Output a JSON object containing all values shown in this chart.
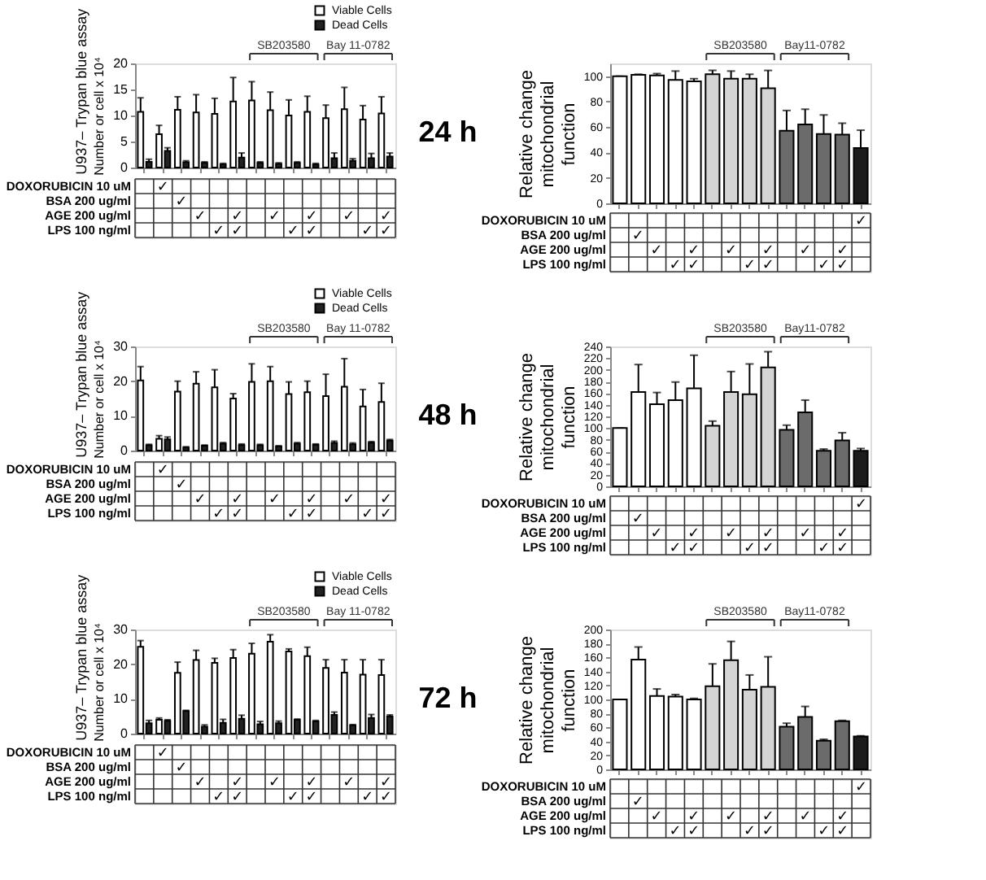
{
  "chart_data": [
    {
      "type": "bar",
      "title": "U937– Trypan blue assay",
      "ylabel": "Number or cell x 10⁴",
      "categories": [
        null,
        null,
        null,
        null,
        null,
        null,
        null,
        null,
        null,
        null,
        null,
        null,
        null,
        null
      ],
      "series": [
        {
          "name": "Viable Cells",
          "color": "#ffffff",
          "values": [
            10.7,
            6.4,
            11.1,
            10.6,
            10.3,
            12.7,
            12.9,
            11.0,
            10.0,
            10.7,
            9.5,
            11.2,
            9.2,
            10.4
          ],
          "errors": [
            2.7,
            1.7,
            2.5,
            3.4,
            3.0,
            4.6,
            3.6,
            3.5,
            3.0,
            3.0,
            2.5,
            4.2,
            2.7,
            3.2
          ]
        },
        {
          "name": "Dead Cells",
          "color": "#222222",
          "values": [
            1.1,
            3.2,
            1.0,
            0.9,
            0.6,
            1.9,
            0.9,
            0.7,
            0.9,
            0.6,
            1.8,
            1.3,
            1.8,
            2.1
          ],
          "errors": [
            0.5,
            0.6,
            0.3,
            0.2,
            0.2,
            0.9,
            0.2,
            0.2,
            0.2,
            0.2,
            1.0,
            0.4,
            0.9,
            0.7
          ]
        }
      ],
      "ylim": [
        0,
        20
      ],
      "yticks": [
        0,
        5,
        10,
        15,
        20
      ],
      "legend": "top right",
      "tick_labels": "y",
      "annotations": [
        "SB203580",
        "Bay 11-0782"
      ]
    },
    {
      "type": "other",
      "categories": [
        null,
        null,
        null,
        null,
        null,
        null,
        null,
        null,
        null,
        null,
        null,
        null,
        null,
        null
      ],
      "y_categories": [
        "DOXORUBICIN 10 uM",
        "BSA 200 ug/ml",
        "AGE 200 ug/ml",
        "LPS 100 ng/ml"
      ],
      "cell_labels": [
        [
          null,
          "✓",
          null,
          null,
          null,
          null,
          null,
          null,
          null,
          null,
          null,
          null,
          null,
          null
        ],
        [
          null,
          null,
          "✓",
          null,
          null,
          null,
          null,
          null,
          null,
          null,
          null,
          null,
          null,
          null
        ],
        [
          null,
          null,
          null,
          "✓",
          null,
          "✓",
          null,
          "✓",
          null,
          "✓",
          null,
          "✓",
          null,
          "✓"
        ],
        [
          null,
          null,
          null,
          null,
          "✓",
          "✓",
          null,
          null,
          "✓",
          "✓",
          null,
          null,
          "✓",
          "✓"
        ]
      ]
    },
    {
      "type": "bar",
      "title": "24 h",
      "ylabel": "Relative change mitochondrial function",
      "categories": [
        null,
        null,
        null,
        null,
        null,
        null,
        null,
        null,
        null,
        null,
        null,
        null,
        null,
        null
      ],
      "values": [
        100,
        101,
        100.5,
        97,
        96,
        101.5,
        98,
        98,
        90.5,
        57,
        62,
        54.5,
        54,
        43.5
      ],
      "errors": [
        0,
        0.5,
        1.5,
        7,
        2,
        3,
        6,
        3.5,
        14,
        16,
        12,
        15,
        9,
        14
      ],
      "colors": [
        "#ffffff",
        "#ffffff",
        "#ffffff",
        "#ffffff",
        "#ffffff",
        "#d4d4d4",
        "#d4d4d4",
        "#d4d4d4",
        "#d4d4d4",
        "#6b6b6b",
        "#6b6b6b",
        "#6b6b6b",
        "#6b6b6b",
        "#1c1c1c"
      ],
      "ylim": [
        0,
        110
      ],
      "yticks": [
        0,
        20,
        40,
        60,
        80,
        100
      ],
      "tick_labels": "y",
      "annotations": [
        "SB203580",
        "Bay11-0782"
      ]
    },
    {
      "type": "other",
      "categories": [
        null,
        null,
        null,
        null,
        null,
        null,
        null,
        null,
        null,
        null,
        null,
        null,
        null,
        null
      ],
      "y_categories": [
        "DOXORUBICIN 10 uM",
        "BSA 200 ug/ml",
        "AGE 200 ug/ml",
        "LPS 100 ng/ml"
      ],
      "cell_labels": [
        [
          null,
          null,
          null,
          null,
          null,
          null,
          null,
          null,
          null,
          null,
          null,
          null,
          null,
          "✓"
        ],
        [
          null,
          "✓",
          null,
          null,
          null,
          null,
          null,
          null,
          null,
          null,
          null,
          null,
          null,
          null
        ],
        [
          null,
          null,
          "✓",
          null,
          "✓",
          null,
          "✓",
          null,
          "✓",
          null,
          "✓",
          null,
          "✓",
          null
        ],
        [
          null,
          null,
          null,
          "✓",
          "✓",
          null,
          null,
          "✓",
          "✓",
          null,
          null,
          "✓",
          "✓",
          null
        ]
      ]
    },
    {
      "type": "bar",
      "title": "U937– Trypan blue assay",
      "ylabel": "Number or cell x 10⁴",
      "categories": [
        null,
        null,
        null,
        null,
        null,
        null,
        null,
        null,
        null,
        null,
        null,
        null,
        null,
        null
      ],
      "series": [
        {
          "name": "Viable Cells",
          "color": "#ffffff",
          "values": [
            20.2,
            3.4,
            17.0,
            19.3,
            18.2,
            15.0,
            19.8,
            20.0,
            16.3,
            16.8,
            15.7,
            18.4,
            12.7,
            14.0
          ],
          "errors": [
            4.0,
            0.9,
            3.0,
            3.4,
            5.1,
            1.4,
            5.2,
            4.2,
            3.5,
            3.2,
            6.3,
            8.1,
            4.9,
            5.4
          ]
        },
        {
          "name": "Dead Cells",
          "color": "#222222",
          "values": [
            1.5,
            3.2,
            0.9,
            1.4,
            2.0,
            1.6,
            1.5,
            1.2,
            2.0,
            1.7,
            2.2,
            1.8,
            2.3,
            2.9
          ],
          "errors": [
            0.3,
            0.7,
            0.2,
            0.2,
            0.3,
            0.3,
            0.3,
            0.2,
            0.3,
            0.2,
            0.5,
            0.4,
            0.3,
            0.3
          ]
        }
      ],
      "ylim": [
        0,
        30
      ],
      "yticks": [
        0,
        10,
        20,
        30
      ],
      "legend": "top right",
      "tick_labels": "y",
      "annotations": [
        "SB203580",
        "Bay 11-0782"
      ]
    },
    {
      "type": "other",
      "categories": [
        null,
        null,
        null,
        null,
        null,
        null,
        null,
        null,
        null,
        null,
        null,
        null,
        null,
        null
      ],
      "y_categories": [
        "DOXORUBICIN 10 uM",
        "BSA 200 ug/ml",
        "AGE 200 ug/ml",
        "LPS 100 ng/ml"
      ],
      "cell_labels": [
        [
          null,
          "✓",
          null,
          null,
          null,
          null,
          null,
          null,
          null,
          null,
          null,
          null,
          null,
          null
        ],
        [
          null,
          null,
          "✓",
          null,
          null,
          null,
          null,
          null,
          null,
          null,
          null,
          null,
          null,
          null
        ],
        [
          null,
          null,
          null,
          "✓",
          null,
          "✓",
          null,
          "✓",
          null,
          "✓",
          null,
          "✓",
          null,
          "✓"
        ],
        [
          null,
          null,
          null,
          null,
          "✓",
          "✓",
          null,
          null,
          "✓",
          "✓",
          null,
          null,
          "✓",
          "✓"
        ]
      ]
    },
    {
      "type": "bar",
      "title": "48 h",
      "ylabel": "Relative change mitochondrial function",
      "categories": [
        null,
        null,
        null,
        null,
        null,
        null,
        null,
        null,
        null,
        null,
        null,
        null,
        null,
        null
      ],
      "values": [
        100,
        162,
        141,
        148,
        168,
        104,
        162,
        158,
        204,
        97,
        127,
        61,
        79,
        61
      ],
      "errors": [
        0,
        47,
        20,
        31,
        57,
        8,
        35,
        52,
        27,
        8,
        21,
        3,
        13,
        4
      ],
      "colors": [
        "#ffffff",
        "#ffffff",
        "#ffffff",
        "#ffffff",
        "#ffffff",
        "#d4d4d4",
        "#d4d4d4",
        "#d4d4d4",
        "#d4d4d4",
        "#6b6b6b",
        "#6b6b6b",
        "#6b6b6b",
        "#6b6b6b",
        "#1c1c1c"
      ],
      "ylim": [
        0,
        240
      ],
      "yticks": [
        0,
        20,
        40,
        60,
        80,
        100,
        120,
        140,
        160,
        180,
        200,
        220,
        240
      ],
      "tick_labels": "y",
      "annotations": [
        "SB203580",
        "Bay11-0782"
      ]
    },
    {
      "type": "other",
      "categories": [
        null,
        null,
        null,
        null,
        null,
        null,
        null,
        null,
        null,
        null,
        null,
        null,
        null,
        null
      ],
      "y_categories": [
        "DOXORUBICIN 10 uM",
        "BSA 200 ug/ml",
        "AGE 200 ug/ml",
        "LPS 100 ng/ml"
      ],
      "cell_labels": [
        [
          null,
          null,
          null,
          null,
          null,
          null,
          null,
          null,
          null,
          null,
          null,
          null,
          null,
          "✓"
        ],
        [
          null,
          "✓",
          null,
          null,
          null,
          null,
          null,
          null,
          null,
          null,
          null,
          null,
          null,
          null
        ],
        [
          null,
          null,
          "✓",
          null,
          "✓",
          null,
          "✓",
          null,
          "✓",
          null,
          "✓",
          null,
          "✓",
          null
        ],
        [
          null,
          null,
          null,
          "✓",
          "✓",
          null,
          null,
          "✓",
          "✓",
          null,
          null,
          "✓",
          "✓",
          null
        ]
      ]
    },
    {
      "type": "bar",
      "title": "U937– Trypan blue assay",
      "ylabel": "Number or cell x 10⁴",
      "categories": [
        null,
        null,
        null,
        null,
        null,
        null,
        null,
        null,
        null,
        null,
        null,
        null,
        null,
        null
      ],
      "series": [
        {
          "name": "Viable Cells",
          "color": "#ffffff",
          "values": [
            25.0,
            4.0,
            17.5,
            21.2,
            20.4,
            21.8,
            23.0,
            26.5,
            23.7,
            22.3,
            18.9,
            17.6,
            17.0,
            16.9
          ],
          "errors": [
            1.8,
            0.5,
            3.1,
            2.8,
            1.3,
            2.4,
            3.0,
            2.0,
            0.7,
            2.6,
            2.4,
            3.7,
            4.3,
            4.4
          ]
        },
        {
          "name": "Dead Cells",
          "color": "#222222",
          "values": [
            3.0,
            3.7,
            6.5,
            2.0,
            3.1,
            4.3,
            2.7,
            3.0,
            4.0,
            3.5,
            5.4,
            2.4,
            4.5,
            4.9
          ],
          "errors": [
            0.8,
            0.3,
            0.2,
            0.5,
            1.0,
            1.0,
            0.8,
            0.6,
            0.2,
            0.3,
            0.8,
            0.2,
            1.0,
            0.5
          ]
        }
      ],
      "ylim": [
        0,
        30
      ],
      "yticks": [
        0,
        10,
        20,
        30
      ],
      "legend": "top right",
      "tick_labels": "y",
      "annotations": [
        "SB203580",
        "Bay 11-0782"
      ]
    },
    {
      "type": "other",
      "categories": [
        null,
        null,
        null,
        null,
        null,
        null,
        null,
        null,
        null,
        null,
        null,
        null,
        null,
        null
      ],
      "y_categories": [
        "DOXORUBICIN 10 uM",
        "BSA 200 ug/ml",
        "AGE 200 ug/ml",
        "LPS 100 ng/ml"
      ],
      "cell_labels": [
        [
          null,
          "✓",
          null,
          null,
          null,
          null,
          null,
          null,
          null,
          null,
          null,
          null,
          null,
          null
        ],
        [
          null,
          null,
          "✓",
          null,
          null,
          null,
          null,
          null,
          null,
          null,
          null,
          null,
          null,
          null
        ],
        [
          null,
          null,
          null,
          "✓",
          null,
          "✓",
          null,
          "✓",
          null,
          "✓",
          null,
          "✓",
          null,
          "✓"
        ],
        [
          null,
          null,
          null,
          null,
          "✓",
          "✓",
          null,
          null,
          "✓",
          "✓",
          null,
          null,
          "✓",
          "✓"
        ]
      ]
    },
    {
      "type": "bar",
      "title": "72 h",
      "ylabel": "Relative change mitochondrial function",
      "categories": [
        null,
        null,
        null,
        null,
        null,
        null,
        null,
        null,
        null,
        null,
        null,
        null,
        null,
        null
      ],
      "values": [
        100,
        157,
        105,
        104,
        100,
        119,
        156,
        114,
        118,
        61,
        75,
        41,
        69,
        47
      ],
      "errors": [
        0,
        18,
        10,
        3,
        1.5,
        32,
        27,
        21,
        43,
        5,
        15,
        2,
        1,
        1
      ],
      "colors": [
        "#ffffff",
        "#ffffff",
        "#ffffff",
        "#ffffff",
        "#ffffff",
        "#d4d4d4",
        "#d4d4d4",
        "#d4d4d4",
        "#d4d4d4",
        "#6b6b6b",
        "#6b6b6b",
        "#6b6b6b",
        "#6b6b6b",
        "#1c1c1c"
      ],
      "ylim": [
        0,
        200
      ],
      "yticks": [
        0,
        20,
        40,
        60,
        80,
        100,
        120,
        140,
        160,
        180,
        200
      ],
      "tick_labels": "y",
      "annotations": [
        "SB203580",
        "Bay11-0782"
      ]
    },
    {
      "type": "other",
      "categories": [
        null,
        null,
        null,
        null,
        null,
        null,
        null,
        null,
        null,
        null,
        null,
        null,
        null,
        null
      ],
      "y_categories": [
        "DOXORUBICIN 10 uM",
        "BSA 200 ug/ml",
        "AGE 200 ug/ml",
        "LPS 100 ng/ml"
      ],
      "cell_labels": [
        [
          null,
          null,
          null,
          null,
          null,
          null,
          null,
          null,
          null,
          null,
          null,
          null,
          null,
          "✓"
        ],
        [
          null,
          "✓",
          null,
          null,
          null,
          null,
          null,
          null,
          null,
          null,
          null,
          null,
          null,
          null
        ],
        [
          null,
          null,
          "✓",
          null,
          "✓",
          null,
          "✓",
          null,
          "✓",
          null,
          "✓",
          null,
          "✓",
          null
        ],
        [
          null,
          null,
          null,
          "✓",
          "✓",
          null,
          null,
          "✓",
          "✓",
          null,
          null,
          "✓",
          "✓",
          null
        ]
      ]
    }
  ]
}
